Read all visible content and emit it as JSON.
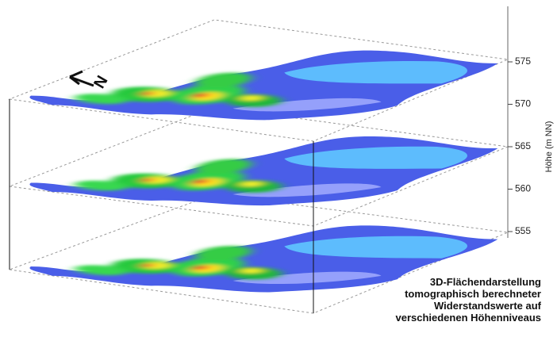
{
  "axis": {
    "label": "Höhe (m NN)",
    "ticks": [
      575,
      570,
      565,
      560,
      555
    ]
  },
  "north_label": "N",
  "caption": [
    "3D-Flächendarstellung",
    "tomographisch  berechneter",
    "Widerstandswerte auf",
    "verschiedenen Höhenniveaus"
  ]
}
